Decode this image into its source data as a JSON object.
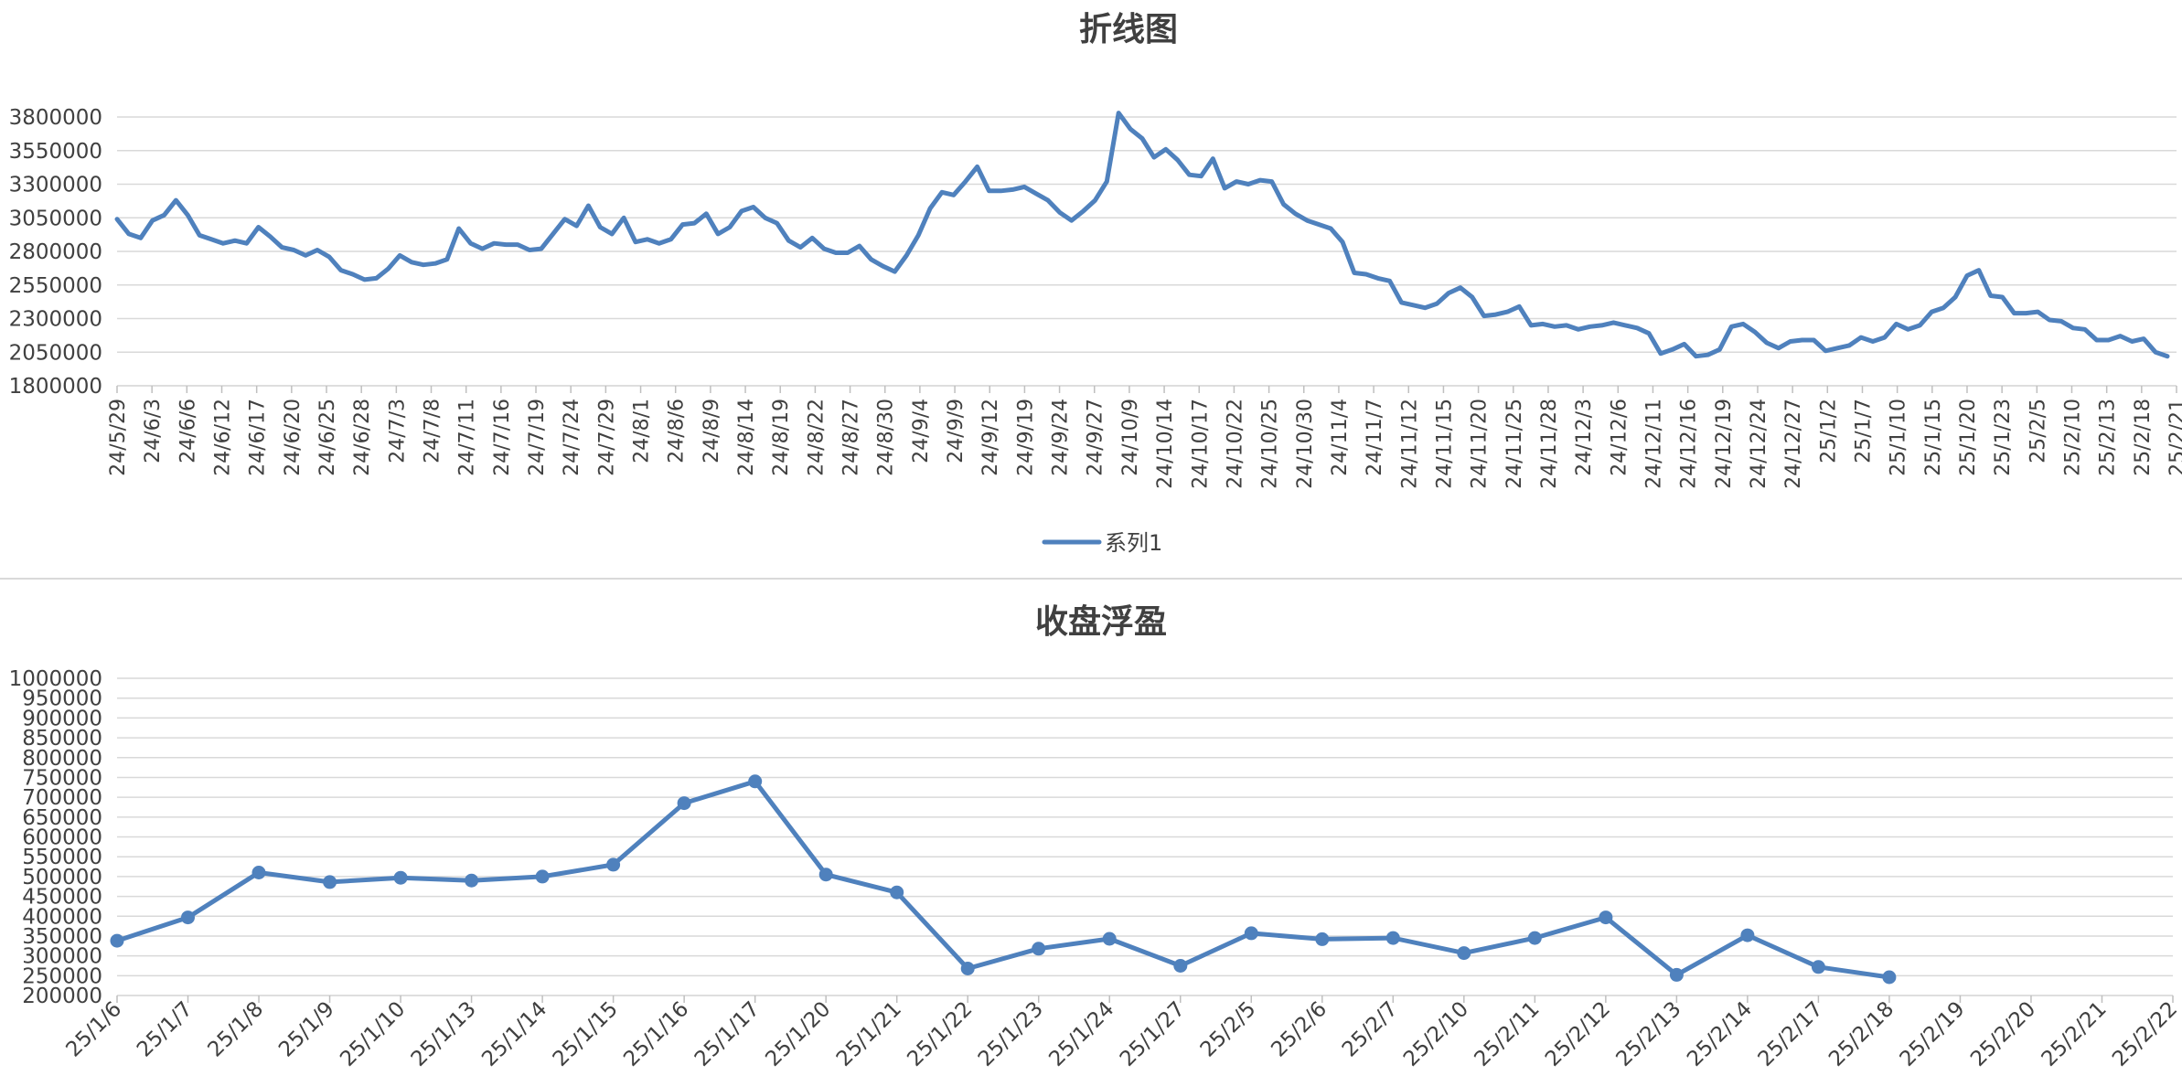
{
  "chart_data": [
    {
      "type": "line",
      "title": "折线图",
      "ylim": [
        1800000,
        3800000
      ],
      "yticks": [
        1800000,
        2050000,
        2300000,
        2550000,
        2800000,
        3050000,
        3300000,
        3550000,
        3800000
      ],
      "xticks": [
        "24/5/29",
        "24/6/3",
        "24/6/6",
        "24/6/12",
        "24/6/17",
        "24/6/20",
        "24/6/25",
        "24/6/28",
        "24/7/3",
        "24/7/8",
        "24/7/11",
        "24/7/16",
        "24/7/19",
        "24/7/24",
        "24/7/29",
        "24/8/1",
        "24/8/6",
        "24/8/9",
        "24/8/14",
        "24/8/19",
        "24/8/22",
        "24/8/27",
        "24/8/30",
        "24/9/4",
        "24/9/9",
        "24/9/12",
        "24/9/19",
        "24/9/24",
        "24/9/27",
        "24/10/9",
        "24/10/14",
        "24/10/17",
        "24/10/22",
        "24/10/25",
        "24/10/30",
        "24/11/4",
        "24/11/7",
        "24/11/12",
        "24/11/15",
        "24/11/20",
        "24/11/25",
        "24/11/28",
        "24/12/3",
        "24/12/6",
        "24/12/11",
        "24/12/16",
        "24/12/19",
        "24/12/24",
        "24/12/27",
        "25/1/2",
        "25/1/7",
        "25/1/10",
        "25/1/15",
        "25/1/20",
        "25/1/23",
        "25/2/5",
        "25/2/10",
        "25/2/13",
        "25/2/18",
        "25/2/21"
      ],
      "grid": true,
      "legend": "bottom-center",
      "color": "#4f81bd",
      "series": [
        {
          "name": "系列1",
          "values": [
            3040000,
            2930000,
            2900000,
            3030000,
            3070000,
            3180000,
            3070000,
            2920000,
            2890000,
            2860000,
            2880000,
            2860000,
            2980000,
            2910000,
            2830000,
            2810000,
            2770000,
            2810000,
            2760000,
            2660000,
            2630000,
            2590000,
            2600000,
            2670000,
            2770000,
            2720000,
            2700000,
            2710000,
            2740000,
            2970000,
            2860000,
            2820000,
            2860000,
            2850000,
            2850000,
            2810000,
            2820000,
            2930000,
            3040000,
            2990000,
            3140000,
            2980000,
            2930000,
            3050000,
            2870000,
            2890000,
            2860000,
            2890000,
            3000000,
            3010000,
            3080000,
            2930000,
            2980000,
            3100000,
            3130000,
            3050000,
            3010000,
            2880000,
            2830000,
            2900000,
            2820000,
            2790000,
            2790000,
            2840000,
            2740000,
            2690000,
            2650000,
            2770000,
            2920000,
            3120000,
            3240000,
            3220000,
            3320000,
            3430000,
            3250000,
            3250000,
            3260000,
            3280000,
            3230000,
            3180000,
            3090000,
            3030000,
            3100000,
            3180000,
            3320000,
            3830000,
            3710000,
            3640000,
            3500000,
            3560000,
            3480000,
            3370000,
            3360000,
            3490000,
            3270000,
            3320000,
            3300000,
            3330000,
            3320000,
            3150000,
            3080000,
            3030000,
            3000000,
            2970000,
            2870000,
            2640000,
            2630000,
            2600000,
            2580000,
            2420000,
            2400000,
            2380000,
            2410000,
            2490000,
            2530000,
            2460000,
            2320000,
            2330000,
            2350000,
            2390000,
            2250000,
            2260000,
            2240000,
            2250000,
            2220000,
            2240000,
            2250000,
            2270000,
            2250000,
            2230000,
            2190000,
            2040000,
            2070000,
            2110000,
            2020000,
            2030000,
            2070000,
            2240000,
            2260000,
            2200000,
            2120000,
            2080000,
            2130000,
            2140000,
            2140000,
            2060000,
            2080000,
            2100000,
            2160000,
            2130000,
            2160000,
            2260000,
            2220000,
            2250000,
            2350000,
            2380000,
            2460000,
            2620000,
            2660000,
            2470000,
            2460000,
            2340000,
            2340000,
            2350000,
            2290000,
            2280000,
            2230000,
            2220000,
            2140000,
            2140000,
            2170000,
            2130000,
            2150000,
            2050000,
            2020000
          ]
        }
      ]
    },
    {
      "type": "line",
      "title": "收盘浮盈",
      "ylim": [
        200000,
        1000000
      ],
      "yticks": [
        200000,
        250000,
        300000,
        350000,
        400000,
        450000,
        500000,
        550000,
        600000,
        650000,
        700000,
        750000,
        800000,
        850000,
        900000,
        950000,
        1000000
      ],
      "categories": [
        "25/1/6",
        "25/1/7",
        "25/1/8",
        "25/1/9",
        "25/1/10",
        "25/1/13",
        "25/1/14",
        "25/1/15",
        "25/1/16",
        "25/1/17",
        "25/1/20",
        "25/1/21",
        "25/1/22",
        "25/1/23",
        "25/1/24",
        "25/1/27",
        "25/2/5",
        "25/2/6",
        "25/2/7",
        "25/2/10",
        "25/2/11",
        "25/2/12",
        "25/2/13",
        "25/2/14",
        "25/2/17",
        "25/2/18",
        "25/2/19",
        "25/2/20",
        "25/2/21",
        "25/2/22"
      ],
      "grid": true,
      "color": "#4f81bd",
      "series": [
        {
          "values": [
            338000,
            397000,
            510000,
            486000,
            497000,
            490000,
            500000,
            530000,
            685000,
            740000,
            505000,
            460000,
            268000,
            318000,
            343000,
            275000,
            357000,
            342000,
            345000,
            307000,
            345000,
            397000,
            252000,
            352000,
            272000,
            246000,
            null,
            null,
            null,
            null
          ]
        }
      ]
    }
  ]
}
